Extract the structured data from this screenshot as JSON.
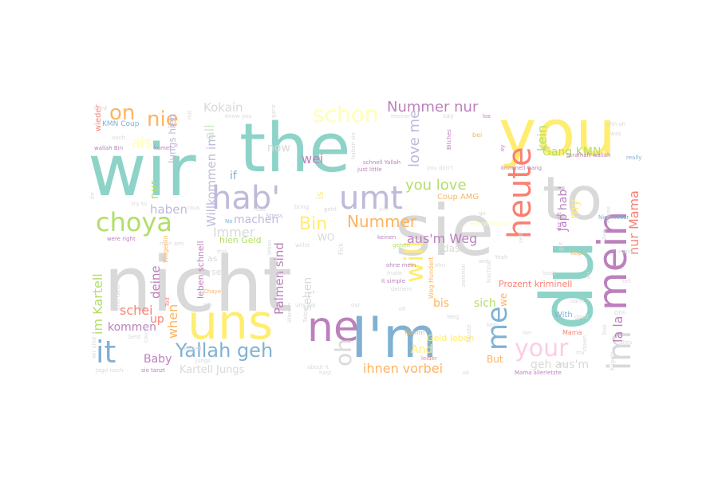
{
  "palette": {
    "teal": "#8dd3c7",
    "yellow": "#ffed6f",
    "grey": "#d9d9d9",
    "lavender": "#bebada",
    "blue": "#80b1d3",
    "salmon": "#fb8072",
    "orange": "#fdb462",
    "green": "#b3de69",
    "pink": "#fccde5",
    "purple": "#bc80bd",
    "mint": "#ccebc5",
    "lightyellow": "#ffffb3"
  },
  "words": [
    {
      "text": "wir",
      "color": "teal"
    },
    {
      "text": "the",
      "color": "teal"
    },
    {
      "text": "you",
      "color": "yellow"
    },
    {
      "text": "nicht",
      "color": "grey"
    },
    {
      "text": "sie",
      "color": "grey"
    },
    {
      "text": "du",
      "color": "teal"
    },
    {
      "text": "to",
      "color": "grey"
    },
    {
      "text": "I'm",
      "color": "blue"
    },
    {
      "text": "uns",
      "color": "yellow"
    },
    {
      "text": "ne",
      "color": "purple"
    },
    {
      "text": "hab'",
      "color": "lavender"
    },
    {
      "text": "umt",
      "color": "lavender"
    },
    {
      "text": "mein",
      "color": "purple"
    },
    {
      "text": "heute",
      "color": "salmon"
    },
    {
      "text": "im",
      "color": "grey"
    },
    {
      "text": "me",
      "color": "blue"
    },
    {
      "text": "choya",
      "color": "green"
    },
    {
      "text": "it",
      "color": "blue"
    },
    {
      "text": "Yallah geh",
      "color": "blue"
    },
    {
      "text": "your",
      "color": "pink"
    },
    {
      "text": "schon",
      "color": "lightyellow"
    },
    {
      "text": "nie",
      "color": "orange"
    },
    {
      "text": "on",
      "color": "orange"
    },
    {
      "text": "Nummer nur",
      "color": "purple"
    },
    {
      "text": "will",
      "color": "yellow"
    },
    {
      "text": "oh",
      "color": "grey"
    },
    {
      "text": "Bin",
      "color": "yellow"
    },
    {
      "text": "Nummer",
      "color": "orange"
    },
    {
      "text": "aus'm Weg",
      "color": "purple"
    },
    {
      "text": "ihnen vorbei",
      "color": "orange"
    },
    {
      "text": "you love",
      "color": "green"
    },
    {
      "text": "Kokain",
      "color": "grey"
    },
    {
      "text": "love me",
      "color": "lavender"
    },
    {
      "text": "nur Mama",
      "color": "salmon"
    },
    {
      "text": "my",
      "color": "yellow"
    },
    {
      "text": "la la",
      "color": "purple"
    },
    {
      "text": "Gang KMN",
      "color": "green"
    },
    {
      "text": "kein",
      "color": "green"
    },
    {
      "text": "Jap hab'",
      "color": "purple"
    },
    {
      "text": "geh aus'm",
      "color": "grey"
    },
    {
      "text": "Immer",
      "color": "grey"
    },
    {
      "text": "machen",
      "color": "lavender"
    },
    {
      "text": "haben",
      "color": "lavender"
    },
    {
      "text": "Willkommen im",
      "color": "lavender"
    },
    {
      "text": "nur",
      "color": "green"
    },
    {
      "text": "als",
      "color": "lightyellow"
    },
    {
      "text": "all",
      "color": "mint"
    },
    {
      "text": "Jungs hien",
      "color": "lavender"
    },
    {
      "text": "now",
      "color": "grey"
    },
    {
      "text": "wei",
      "color": "purple"
    },
    {
      "text": "if",
      "color": "blue"
    },
    {
      "text": "is",
      "color": "yellow"
    },
    {
      "text": "Palmen sind",
      "color": "purple"
    },
    {
      "text": "sehen",
      "color": "grey"
    },
    {
      "text": "im Kartell",
      "color": "green"
    },
    {
      "text": "schei",
      "color": "salmon"
    },
    {
      "text": "kommen",
      "color": "purple"
    },
    {
      "text": "up",
      "color": "salmon"
    },
    {
      "text": "deine",
      "color": "purple"
    },
    {
      "text": "when",
      "color": "orange"
    },
    {
      "text": "Baby",
      "color": "purple"
    },
    {
      "text": "Kartell Jungs",
      "color": "grey"
    },
    {
      "text": "bis",
      "color": "orange"
    },
    {
      "text": "sich",
      "color": "green"
    },
    {
      "text": "And",
      "color": "yellow"
    },
    {
      "text": "dass",
      "color": "grey"
    },
    {
      "text": "Coup AMG",
      "color": "orange"
    },
    {
      "text": "Prozent kriminell",
      "color": "salmon"
    },
    {
      "text": "With",
      "color": "blue"
    },
    {
      "text": "But",
      "color": "orange"
    },
    {
      "text": "Geld leben",
      "color": "yellow"
    },
    {
      "text": "WO",
      "color": "grey"
    },
    {
      "text": "as",
      "color": "grey"
    },
    {
      "text": "hien Geld",
      "color": "green"
    },
    {
      "text": "leben schnell",
      "color": "purple"
    },
    {
      "text": "we",
      "color": "orange"
    },
    {
      "text": "r'",
      "color": "grey"
    },
    {
      "text": "wieder",
      "color": "salmon"
    },
    {
      "text": "KMN Coup",
      "color": "blue"
    },
    {
      "text": "auch",
      "color": "grey"
    },
    {
      "text": "wallah Bin",
      "color": "purple"
    },
    {
      "text": "komet",
      "color": "purple"
    },
    {
      "text": "know you",
      "color": "grey"
    },
    {
      "text": "you don't",
      "color": "grey"
    },
    {
      "text": "Strafhaft wallah",
      "color": "purple"
    },
    {
      "text": "kriminell Gang",
      "color": "purple"
    },
    {
      "text": "really",
      "color": "blue"
    },
    {
      "text": "Nie mieder",
      "color": "blue"
    },
    {
      "text": "Mama allerletzte",
      "color": "purple"
    },
    {
      "text": "Jagd nach",
      "color": "grey"
    },
    {
      "text": "sie tanzt",
      "color": "purple"
    },
    {
      "text": "about it",
      "color": "grey"
    },
    {
      "text": "hast",
      "color": "grey"
    },
    {
      "text": "Komm",
      "color": "orange"
    },
    {
      "text": "Weg Hundert",
      "color": "orange"
    },
    {
      "text": "schnell Yallah",
      "color": "purple"
    },
    {
      "text": "just little",
      "color": "purple"
    },
    {
      "text": "everything go",
      "color": "lightyellow"
    },
    {
      "text": "Stress",
      "color": "lavender"
    },
    {
      "text": "bring",
      "color": "grey"
    },
    {
      "text": "willst",
      "color": "grey"
    },
    {
      "text": "ohne mein",
      "color": "purple"
    },
    {
      "text": "it simple",
      "color": "purple"
    },
    {
      "text": "were right",
      "color": "purple"
    },
    {
      "text": "mon ami",
      "color": "grey"
    },
    {
      "text": "Chaye",
      "color": "orange"
    },
    {
      "text": "try to",
      "color": "grey"
    },
    {
      "text": "sind Geld",
      "color": "grey"
    },
    {
      "text": "Hand",
      "color": "grey"
    },
    {
      "text": "alles",
      "color": "grey"
    },
    {
      "text": "Kugeln",
      "color": "grey"
    },
    {
      "text": "ohh oh",
      "color": "grey"
    },
    {
      "text": "keinen",
      "color": "purple"
    },
    {
      "text": "gehen",
      "color": "green"
    },
    {
      "text": "raus",
      "color": "grey"
    },
    {
      "text": "this",
      "color": "grey"
    },
    {
      "text": "see",
      "color": "grey"
    },
    {
      "text": "No",
      "color": "blue"
    },
    {
      "text": "geht",
      "color": "grey"
    },
    {
      "text": "our",
      "color": "grey"
    },
    {
      "text": "leider",
      "color": "salmon"
    },
    {
      "text": "Wagenin",
      "color": "orange"
    },
    {
      "text": "Tod",
      "color": "salmon"
    },
    {
      "text": "uns Jap",
      "color": "grey"
    },
    {
      "text": "deinem",
      "color": "grey"
    },
    {
      "text": "make",
      "color": "grey"
    },
    {
      "text": "meiner",
      "color": "grey"
    },
    {
      "text": "Bitches",
      "color": "purple"
    },
    {
      "text": "hard",
      "color": "grey"
    },
    {
      "text": "ihr",
      "color": "grey"
    },
    {
      "text": "mit",
      "color": "grey"
    },
    {
      "text": "Fick",
      "color": "grey"
    },
    {
      "text": "dur uft",
      "color": "purple"
    },
    {
      "text": "zweimal",
      "color": "grey"
    },
    {
      "text": "Zeit",
      "color": "grey"
    },
    {
      "text": "los",
      "color": "purple"
    },
    {
      "text": "Ihr",
      "color": "grey"
    },
    {
      "text": "say",
      "color": "grey"
    },
    {
      "text": "bei",
      "color": "orange"
    },
    {
      "text": "ey",
      "color": "purple"
    },
    {
      "text": "Kopf",
      "color": "orange"
    },
    {
      "text": "leben",
      "color": "grey"
    },
    {
      "text": "Preise",
      "color": "grey"
    },
    {
      "text": "cause",
      "color": "grey"
    },
    {
      "text": "gut",
      "color": "grey"
    },
    {
      "text": "seit",
      "color": "grey"
    },
    {
      "text": "tell",
      "color": "grey"
    },
    {
      "text": "wir sind",
      "color": "grey"
    },
    {
      "text": "bist",
      "color": "grey"
    },
    {
      "text": "Warum",
      "color": "grey"
    },
    {
      "text": "Tatort",
      "color": "grey"
    },
    {
      "text": "dann",
      "color": "grey"
    },
    {
      "text": "ohn",
      "color": "grey"
    },
    {
      "text": "oh",
      "color": "grey"
    },
    {
      "text": "go",
      "color": "grey"
    },
    {
      "text": "ich",
      "color": "grey"
    },
    {
      "text": "Mama",
      "color": "salmon"
    },
    {
      "text": "Jap",
      "color": "grey"
    },
    {
      "text": "wie",
      "color": "grey"
    },
    {
      "text": "Wa",
      "color": "grey"
    },
    {
      "text": "Ohh",
      "color": "grey"
    },
    {
      "text": "mir",
      "color": "grey"
    },
    {
      "text": "Nachbar",
      "color": "grey"
    },
    {
      "text": "lasst",
      "color": "grey"
    },
    {
      "text": "haben sie",
      "color": "grey"
    },
    {
      "text": "Fäuste",
      "color": "grey"
    },
    {
      "text": "Weg",
      "color": "grey"
    },
    {
      "text": "Geld",
      "color": "grey"
    },
    {
      "text": "Yeah",
      "color": "grey"
    },
    {
      "text": "raus",
      "color": "grey"
    },
    {
      "text": "good",
      "color": "grey"
    },
    {
      "text": "frei",
      "color": "grey"
    },
    {
      "text": "Jungs",
      "color": "grey"
    },
    {
      "text": "Kartell",
      "color": "grey"
    },
    {
      "text": "kein",
      "color": "grey"
    },
    {
      "text": "was",
      "color": "grey"
    },
    {
      "text": "down",
      "color": "grey"
    },
    {
      "text": "her",
      "color": "grey"
    },
    {
      "text": "ganz",
      "color": "grey"
    },
    {
      "text": "ok",
      "color": "grey"
    }
  ]
}
